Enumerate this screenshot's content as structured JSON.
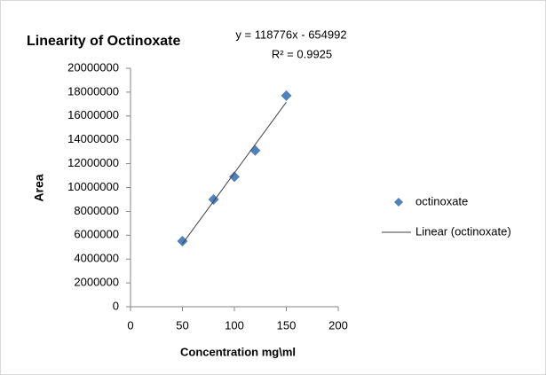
{
  "chart_data": {
    "type": "scatter",
    "title": "Linearity of Octinoxate",
    "annotations": [
      "y = 118776x - 654992",
      "R² = 0.9925"
    ],
    "xlabel": "Concentration mg\\ml",
    "ylabel": "Area",
    "series": [
      {
        "name": "octinoxate",
        "color": "#4f81bd",
        "mode": "markers",
        "x": [
          50,
          80,
          100,
          120,
          150
        ],
        "values": [
          5500000,
          9000000,
          10900000,
          13100000,
          17700000
        ]
      },
      {
        "name": "Linear (octinoxate)",
        "color": "#404040",
        "mode": "lines",
        "x": [
          50,
          150
        ],
        "values": [
          5283808,
          17161408
        ]
      }
    ],
    "xlim": [
      0,
      200
    ],
    "xticks": [
      0,
      50,
      100,
      150,
      200
    ],
    "ylim": [
      0,
      20000000
    ],
    "yticks": [
      0,
      2000000,
      4000000,
      6000000,
      8000000,
      10000000,
      12000000,
      14000000,
      16000000,
      18000000,
      20000000
    ],
    "grid": false,
    "legend": "right"
  }
}
